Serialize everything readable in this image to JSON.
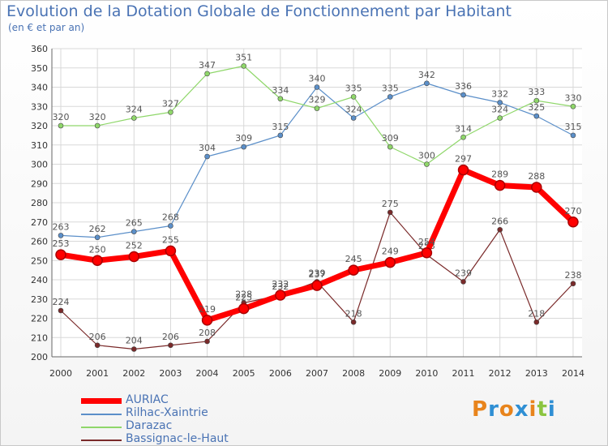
{
  "chart_data": {
    "type": "line",
    "title": "Evolution de la Dotation Globale de Fonctionnement par Habitant",
    "subtitle": "(en € et par an)",
    "x": [
      "2000",
      "2001",
      "2002",
      "2003",
      "2004",
      "2005",
      "2006",
      "2007",
      "2008",
      "2009",
      "2010",
      "2011",
      "2012",
      "2013",
      "2014"
    ],
    "ylim": [
      200,
      360
    ],
    "yticks": [
      200,
      210,
      220,
      230,
      240,
      250,
      260,
      270,
      280,
      290,
      300,
      310,
      320,
      330,
      340,
      350,
      360
    ],
    "grid": true,
    "legend_position": "bottom-left",
    "series": [
      {
        "name": "AURIAC",
        "color": "#ff0000",
        "values": [
          253,
          250,
          252,
          255,
          219,
          225,
          232,
          237,
          245,
          249,
          254,
          297,
          289,
          288,
          270
        ]
      },
      {
        "name": "Rilhac-Xaintrie",
        "color": "#5b8fc9",
        "values": [
          263,
          262,
          265,
          268,
          304,
          309,
          315,
          340,
          324,
          335,
          342,
          336,
          332,
          325,
          315
        ]
      },
      {
        "name": "Darazac",
        "color": "#8fd76a",
        "values": [
          320,
          320,
          324,
          327,
          347,
          351,
          334,
          329,
          335,
          309,
          300,
          314,
          324,
          333,
          330
        ]
      },
      {
        "name": "Bassignac-le-Haut",
        "color": "#7a2a2a",
        "values": [
          224,
          206,
          204,
          206,
          208,
          228,
          232,
          239,
          218,
          275,
          253,
          239,
          266,
          218,
          238
        ]
      }
    ]
  },
  "logo": {
    "text": "Proxiti",
    "colors": [
      "#e8841c",
      "#2f8fd4",
      "#e8841c",
      "#2f8fd4",
      "#e8841c",
      "#8bc540",
      "#2f8fd4"
    ]
  }
}
